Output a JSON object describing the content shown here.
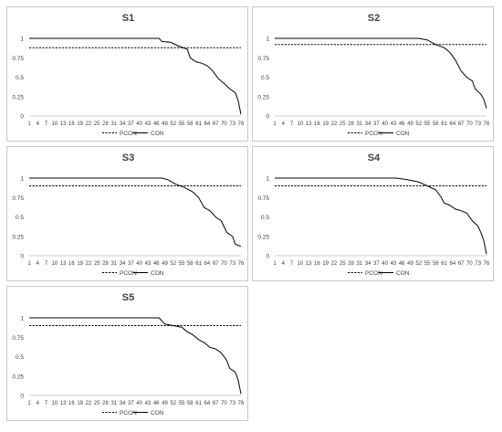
{
  "chart_data": [
    {
      "type": "line",
      "title": "S1",
      "x": {
        "start": 1,
        "end": 76
      },
      "xticks": [
        1,
        4,
        7,
        10,
        13,
        16,
        19,
        22,
        25,
        28,
        31,
        34,
        37,
        40,
        43,
        46,
        49,
        52,
        55,
        58,
        61,
        64,
        67,
        70,
        73,
        76
      ],
      "ylim": [
        0,
        1
      ],
      "yticks": [
        0,
        0.25,
        0.5,
        0.75,
        1
      ],
      "ytick_labels": [
        "0",
        "0.25",
        "0.5",
        "0.75",
        "1"
      ],
      "series": [
        {
          "name": "PCON",
          "style": "dashed",
          "points": [
            [
              1,
              0.88
            ],
            [
              76,
              0.88
            ]
          ]
        },
        {
          "name": "CON",
          "style": "solid",
          "points": [
            [
              1,
              1
            ],
            [
              47,
              1
            ],
            [
              48,
              0.96
            ],
            [
              51,
              0.95
            ],
            [
              54,
              0.9
            ],
            [
              57,
              0.86
            ],
            [
              58,
              0.75
            ],
            [
              60,
              0.7
            ],
            [
              62,
              0.68
            ],
            [
              64,
              0.65
            ],
            [
              66,
              0.58
            ],
            [
              68,
              0.48
            ],
            [
              70,
              0.42
            ],
            [
              72,
              0.35
            ],
            [
              74,
              0.3
            ],
            [
              75,
              0.2
            ],
            [
              76,
              0.02
            ]
          ]
        }
      ]
    },
    {
      "type": "line",
      "title": "S2",
      "x": {
        "start": 1,
        "end": 76
      },
      "xticks": [
        1,
        4,
        7,
        10,
        13,
        16,
        19,
        22,
        25,
        28,
        31,
        34,
        37,
        40,
        43,
        46,
        49,
        52,
        55,
        58,
        61,
        64,
        67,
        70,
        73,
        76
      ],
      "ylim": [
        0,
        1
      ],
      "yticks": [
        0,
        0.25,
        0.5,
        0.75,
        1
      ],
      "ytick_labels": [
        "0",
        "0.25",
        "0.5",
        "0.75",
        "1"
      ],
      "series": [
        {
          "name": "PCON",
          "style": "dashed",
          "points": [
            [
              1,
              0.92
            ],
            [
              76,
              0.92
            ]
          ]
        },
        {
          "name": "CON",
          "style": "solid",
          "points": [
            [
              1,
              1
            ],
            [
              52,
              1
            ],
            [
              55,
              0.98
            ],
            [
              58,
              0.92
            ],
            [
              61,
              0.88
            ],
            [
              63,
              0.82
            ],
            [
              65,
              0.72
            ],
            [
              67,
              0.58
            ],
            [
              69,
              0.5
            ],
            [
              71,
              0.45
            ],
            [
              72,
              0.35
            ],
            [
              74,
              0.28
            ],
            [
              75,
              0.22
            ],
            [
              76,
              0.1
            ]
          ]
        }
      ]
    },
    {
      "type": "line",
      "title": "S3",
      "x": {
        "start": 1,
        "end": 76
      },
      "xticks": [
        1,
        4,
        7,
        10,
        13,
        16,
        19,
        22,
        25,
        28,
        31,
        34,
        37,
        40,
        43,
        46,
        49,
        52,
        55,
        58,
        61,
        64,
        67,
        70,
        73,
        76
      ],
      "ylim": [
        0,
        1
      ],
      "yticks": [
        0,
        0.25,
        0.5,
        0.75,
        1
      ],
      "ytick_labels": [
        "0",
        "0.25",
        "0.5",
        "0.75",
        "1"
      ],
      "series": [
        {
          "name": "PCON",
          "style": "dashed",
          "points": [
            [
              1,
              0.9
            ],
            [
              76,
              0.9
            ]
          ]
        },
        {
          "name": "CON",
          "style": "solid",
          "points": [
            [
              1,
              1
            ],
            [
              48,
              1
            ],
            [
              50,
              0.98
            ],
            [
              53,
              0.92
            ],
            [
              56,
              0.88
            ],
            [
              59,
              0.82
            ],
            [
              61,
              0.75
            ],
            [
              63,
              0.62
            ],
            [
              65,
              0.58
            ],
            [
              67,
              0.5
            ],
            [
              69,
              0.45
            ],
            [
              71,
              0.3
            ],
            [
              73,
              0.25
            ],
            [
              74,
              0.15
            ],
            [
              76,
              0.12
            ]
          ]
        }
      ]
    },
    {
      "type": "line",
      "title": "S4",
      "x": {
        "start": 1,
        "end": 76
      },
      "xticks": [
        1,
        4,
        7,
        10,
        13,
        16,
        19,
        22,
        25,
        28,
        31,
        34,
        37,
        40,
        43,
        46,
        49,
        52,
        55,
        58,
        61,
        64,
        67,
        70,
        73,
        76
      ],
      "ylim": [
        0,
        1
      ],
      "yticks": [
        0,
        0.25,
        0.5,
        0.75,
        1
      ],
      "ytick_labels": [
        "0",
        "0.25",
        "0.5",
        "0.75",
        "1"
      ],
      "series": [
        {
          "name": "PCON",
          "style": "dashed",
          "points": [
            [
              1,
              0.9
            ],
            [
              76,
              0.9
            ]
          ]
        },
        {
          "name": "CON",
          "style": "solid",
          "points": [
            [
              1,
              1
            ],
            [
              44,
              1
            ],
            [
              48,
              0.98
            ],
            [
              52,
              0.95
            ],
            [
              55,
              0.9
            ],
            [
              58,
              0.85
            ],
            [
              60,
              0.75
            ],
            [
              61,
              0.68
            ],
            [
              63,
              0.65
            ],
            [
              65,
              0.6
            ],
            [
              67,
              0.58
            ],
            [
              69,
              0.55
            ],
            [
              71,
              0.45
            ],
            [
              73,
              0.38
            ],
            [
              74,
              0.3
            ],
            [
              75,
              0.2
            ],
            [
              76,
              0.02
            ]
          ]
        }
      ]
    },
    {
      "type": "line",
      "title": "S5",
      "x": {
        "start": 1,
        "end": 76
      },
      "xticks": [
        1,
        4,
        7,
        10,
        13,
        16,
        19,
        22,
        25,
        28,
        31,
        34,
        37,
        40,
        43,
        46,
        49,
        52,
        55,
        58,
        61,
        64,
        67,
        70,
        73,
        76
      ],
      "ylim": [
        0,
        1
      ],
      "yticks": [
        0,
        0.25,
        0.5,
        0.75,
        1
      ],
      "ytick_labels": [
        "0",
        "0.25",
        "0.5",
        "0.75",
        "1"
      ],
      "series": [
        {
          "name": "PCON",
          "style": "dashed",
          "points": [
            [
              1,
              0.9
            ],
            [
              76,
              0.9
            ]
          ]
        },
        {
          "name": "CON",
          "style": "solid",
          "points": [
            [
              1,
              1
            ],
            [
              47,
              1
            ],
            [
              49,
              0.92
            ],
            [
              52,
              0.9
            ],
            [
              55,
              0.88
            ],
            [
              57,
              0.82
            ],
            [
              59,
              0.78
            ],
            [
              61,
              0.72
            ],
            [
              63,
              0.68
            ],
            [
              65,
              0.62
            ],
            [
              67,
              0.6
            ],
            [
              69,
              0.55
            ],
            [
              71,
              0.45
            ],
            [
              72,
              0.35
            ],
            [
              74,
              0.3
            ],
            [
              75,
              0.2
            ],
            [
              76,
              0.02
            ]
          ]
        }
      ]
    }
  ]
}
